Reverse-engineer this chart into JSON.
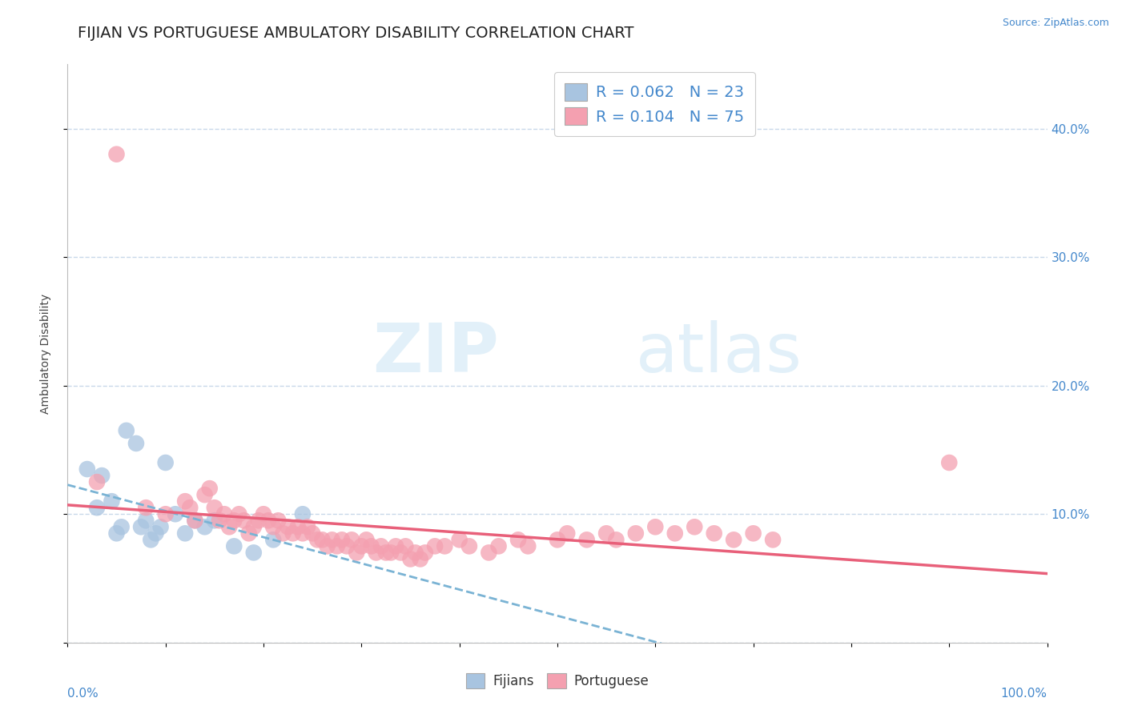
{
  "title": "FIJIAN VS PORTUGUESE AMBULATORY DISABILITY CORRELATION CHART",
  "source_text": "Source: ZipAtlas.com",
  "ylabel": "Ambulatory Disability",
  "fijian_color": "#a8c4e0",
  "portuguese_color": "#f4a0b0",
  "fijian_line_color": "#7ab3d4",
  "portuguese_line_color": "#e8607a",
  "background_color": "#ffffff",
  "grid_color": "#c8d8ea",
  "tick_color": "#4488cc",
  "legend_label_fijian": "R = 0.062   N = 23",
  "legend_label_portuguese": "R = 0.104   N = 75",
  "fijian_x": [
    2.0,
    3.0,
    3.5,
    4.5,
    5.0,
    5.5,
    6.0,
    7.0,
    7.5,
    8.0,
    8.5,
    9.0,
    9.5,
    10.0,
    11.0,
    12.0,
    13.0,
    14.0,
    15.0,
    17.0,
    19.0,
    21.0,
    24.0
  ],
  "fijian_y": [
    13.5,
    10.5,
    13.0,
    11.0,
    8.5,
    9.0,
    16.5,
    15.5,
    9.0,
    9.5,
    8.0,
    8.5,
    9.0,
    14.0,
    10.0,
    8.5,
    9.5,
    9.0,
    9.5,
    7.5,
    7.0,
    8.0,
    10.0
  ],
  "portuguese_x": [
    3.0,
    8.0,
    10.0,
    12.0,
    12.5,
    13.0,
    14.0,
    14.5,
    15.0,
    15.5,
    16.0,
    16.5,
    17.0,
    17.5,
    18.0,
    18.5,
    19.0,
    19.5,
    20.0,
    20.5,
    21.0,
    21.5,
    22.0,
    22.5,
    23.0,
    23.5,
    24.0,
    24.5,
    25.0,
    25.5,
    26.0,
    26.5,
    27.0,
    27.5,
    28.0,
    28.5,
    29.0,
    29.5,
    30.0,
    30.5,
    31.0,
    31.5,
    32.0,
    32.5,
    33.0,
    33.5,
    34.0,
    34.5,
    35.0,
    35.5,
    36.0,
    36.5,
    37.5,
    38.5,
    40.0,
    41.0,
    43.0,
    44.0,
    46.0,
    47.0,
    50.0,
    51.0,
    53.0,
    55.0,
    56.0,
    58.0,
    60.0,
    62.0,
    64.0,
    66.0,
    68.0,
    70.0,
    72.0,
    90.0,
    5.0
  ],
  "portuguese_y": [
    12.5,
    10.5,
    10.0,
    11.0,
    10.5,
    9.5,
    11.5,
    12.0,
    10.5,
    9.5,
    10.0,
    9.0,
    9.5,
    10.0,
    9.5,
    8.5,
    9.0,
    9.5,
    10.0,
    9.5,
    9.0,
    9.5,
    8.5,
    9.0,
    8.5,
    9.0,
    8.5,
    9.0,
    8.5,
    8.0,
    8.0,
    7.5,
    8.0,
    7.5,
    8.0,
    7.5,
    8.0,
    7.0,
    7.5,
    8.0,
    7.5,
    7.0,
    7.5,
    7.0,
    7.0,
    7.5,
    7.0,
    7.5,
    6.5,
    7.0,
    6.5,
    7.0,
    7.5,
    7.5,
    8.0,
    7.5,
    7.0,
    7.5,
    8.0,
    7.5,
    8.0,
    8.5,
    8.0,
    8.5,
    8.0,
    8.5,
    9.0,
    8.5,
    9.0,
    8.5,
    8.0,
    8.5,
    8.0,
    14.0,
    38.0
  ],
  "xlim": [
    0,
    100
  ],
  "ylim": [
    0,
    45
  ],
  "yticks_right": [
    10,
    20,
    30,
    40
  ],
  "ytick_right_labels": [
    "10.0%",
    "20.0%",
    "30.0%",
    "40.0%"
  ],
  "title_fontsize": 14,
  "axis_label_fontsize": 10,
  "tick_fontsize": 11,
  "legend_fontsize": 14
}
